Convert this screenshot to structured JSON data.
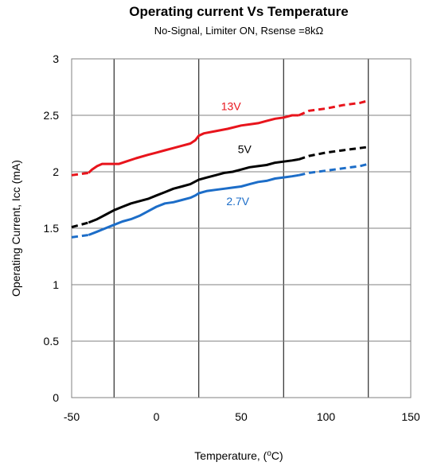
{
  "chart_data": {
    "type": "line",
    "title": "Operating current Vs Temperature",
    "subtitle": "No-Signal, Limiter ON, Rsense =8kΩ",
    "xlabel_prefix": "Temperature, (",
    "xlabel_unit": "°C",
    "xlabel_suffix": ")",
    "ylabel": "Operating Current, Icc (mA)",
    "xlim": [
      -50,
      150
    ],
    "ylim": [
      0,
      3
    ],
    "xticks": [
      "-50",
      "0",
      "50",
      "100",
      "150"
    ],
    "yticks": [
      "0",
      "0.5",
      "1",
      "1.5",
      "2",
      "2.5",
      "3"
    ],
    "x_gridlines": [
      -25,
      25,
      75,
      125
    ],
    "y_gridlines": [
      0.5,
      1,
      1.5,
      2,
      2.5,
      3
    ],
    "series": [
      {
        "name": "13V",
        "color": "#e8141c",
        "label_at": [
          44,
          2.58
        ],
        "solid": [
          [
            -40,
            1.99
          ],
          [
            -38,
            2.02
          ],
          [
            -35,
            2.05
          ],
          [
            -32,
            2.07
          ],
          [
            -28,
            2.07
          ],
          [
            -22,
            2.07
          ],
          [
            -18,
            2.09
          ],
          [
            -12,
            2.12
          ],
          [
            -5,
            2.15
          ],
          [
            0,
            2.17
          ],
          [
            5,
            2.19
          ],
          [
            10,
            2.21
          ],
          [
            15,
            2.23
          ],
          [
            20,
            2.25
          ],
          [
            23,
            2.28
          ],
          [
            25,
            2.32
          ],
          [
            28,
            2.34
          ],
          [
            35,
            2.36
          ],
          [
            42,
            2.38
          ],
          [
            50,
            2.41
          ],
          [
            55,
            2.42
          ],
          [
            60,
            2.43
          ],
          [
            65,
            2.45
          ],
          [
            70,
            2.47
          ],
          [
            75,
            2.48
          ],
          [
            80,
            2.5
          ],
          [
            84,
            2.5
          ]
        ],
        "dashed_low": [
          [
            -50,
            1.97
          ],
          [
            -40,
            1.99
          ]
        ],
        "dashed_high": [
          [
            84,
            2.5
          ],
          [
            90,
            2.54
          ],
          [
            100,
            2.56
          ],
          [
            110,
            2.59
          ],
          [
            120,
            2.61
          ],
          [
            125,
            2.63
          ]
        ]
      },
      {
        "name": "5V",
        "color": "#000000",
        "label_at": [
          52,
          2.2
        ],
        "solid": [
          [
            -40,
            1.55
          ],
          [
            -35,
            1.58
          ],
          [
            -30,
            1.62
          ],
          [
            -25,
            1.66
          ],
          [
            -20,
            1.69
          ],
          [
            -15,
            1.72
          ],
          [
            -10,
            1.74
          ],
          [
            -5,
            1.76
          ],
          [
            0,
            1.79
          ],
          [
            5,
            1.82
          ],
          [
            10,
            1.85
          ],
          [
            15,
            1.87
          ],
          [
            20,
            1.89
          ],
          [
            25,
            1.93
          ],
          [
            30,
            1.95
          ],
          [
            35,
            1.97
          ],
          [
            40,
            1.99
          ],
          [
            45,
            2.0
          ],
          [
            50,
            2.02
          ],
          [
            55,
            2.04
          ],
          [
            60,
            2.05
          ],
          [
            65,
            2.06
          ],
          [
            70,
            2.08
          ],
          [
            75,
            2.09
          ],
          [
            80,
            2.1
          ],
          [
            84,
            2.11
          ]
        ],
        "dashed_low": [
          [
            -50,
            1.51
          ],
          [
            -40,
            1.55
          ]
        ],
        "dashed_high": [
          [
            84,
            2.11
          ],
          [
            90,
            2.14
          ],
          [
            100,
            2.17
          ],
          [
            110,
            2.19
          ],
          [
            120,
            2.21
          ],
          [
            125,
            2.22
          ]
        ]
      },
      {
        "name": "2.7V",
        "color": "#1c6dc8",
        "label_at": [
          48,
          1.74
        ],
        "solid": [
          [
            -40,
            1.44
          ],
          [
            -35,
            1.47
          ],
          [
            -30,
            1.5
          ],
          [
            -25,
            1.53
          ],
          [
            -20,
            1.56
          ],
          [
            -15,
            1.58
          ],
          [
            -10,
            1.61
          ],
          [
            -5,
            1.65
          ],
          [
            0,
            1.69
          ],
          [
            5,
            1.72
          ],
          [
            10,
            1.73
          ],
          [
            15,
            1.75
          ],
          [
            20,
            1.77
          ],
          [
            23,
            1.79
          ],
          [
            25,
            1.81
          ],
          [
            30,
            1.83
          ],
          [
            35,
            1.84
          ],
          [
            40,
            1.85
          ],
          [
            45,
            1.86
          ],
          [
            50,
            1.87
          ],
          [
            55,
            1.89
          ],
          [
            60,
            1.91
          ],
          [
            65,
            1.92
          ],
          [
            70,
            1.94
          ],
          [
            75,
            1.95
          ],
          [
            80,
            1.96
          ],
          [
            84,
            1.97
          ]
        ],
        "dashed_low": [
          [
            -50,
            1.42
          ],
          [
            -40,
            1.44
          ]
        ],
        "dashed_high": [
          [
            84,
            1.97
          ],
          [
            90,
            1.99
          ],
          [
            100,
            2.01
          ],
          [
            110,
            2.03
          ],
          [
            120,
            2.05
          ],
          [
            125,
            2.07
          ]
        ]
      }
    ]
  }
}
